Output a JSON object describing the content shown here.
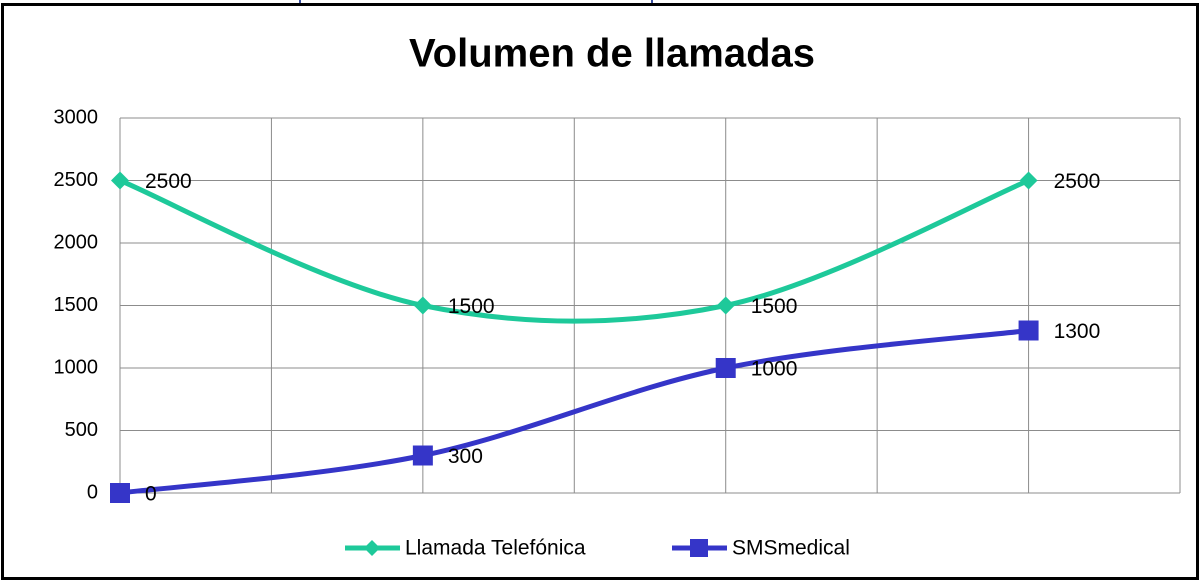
{
  "chart_data": {
    "type": "line",
    "title": "Volumen de llamadas",
    "x": [
      0,
      2,
      4,
      6
    ],
    "xlim": [
      0,
      7
    ],
    "xticks": [
      0,
      1,
      2,
      3,
      4,
      5,
      6,
      7
    ],
    "ylim": [
      0,
      3000
    ],
    "yticks": [
      0,
      500,
      1000,
      1500,
      2000,
      2500,
      3000
    ],
    "grid": true,
    "smooth": true,
    "legend": "bottom",
    "series": [
      {
        "name": "Llamada Telefónica",
        "color": "#1ec99a",
        "marker": "diamond",
        "values": [
          2500,
          1500,
          1500,
          2500
        ]
      },
      {
        "name": "SMSmedical",
        "color": "#3535c8",
        "marker": "square",
        "values": [
          0,
          300,
          1000,
          1300
        ]
      }
    ]
  }
}
